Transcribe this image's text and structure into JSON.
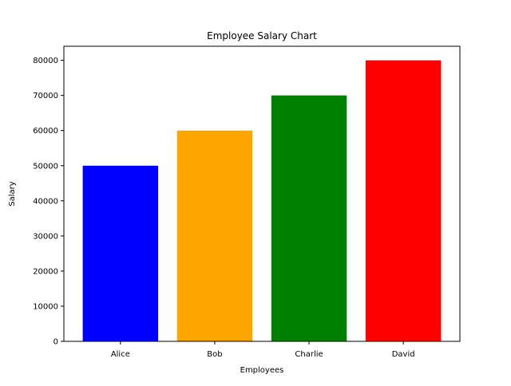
{
  "chart_data": {
    "type": "bar",
    "title": "Employee Salary Chart",
    "xlabel": "Employees",
    "ylabel": "Salary",
    "categories": [
      "Alice",
      "Bob",
      "Charlie",
      "David"
    ],
    "values": [
      50000,
      60000,
      70000,
      80000
    ],
    "colors": [
      "#0000ff",
      "#ffa500",
      "#008000",
      "#ff0000"
    ],
    "ylim": [
      0,
      84000
    ],
    "yticks": [
      0,
      10000,
      20000,
      30000,
      40000,
      50000,
      60000,
      70000,
      80000
    ],
    "grid": false,
    "legend": "none"
  }
}
